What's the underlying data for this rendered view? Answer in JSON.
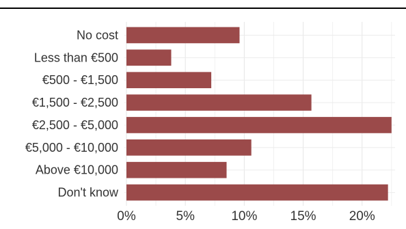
{
  "chart_data": {
    "type": "bar",
    "orientation": "horizontal",
    "title": "",
    "xlabel": "",
    "ylabel": "",
    "categories": [
      "No cost",
      "Less than €500",
      "€500 - €1,500",
      "€1,500  - €2,500",
      "€2,500 - €5,000",
      "€5,000 - €10,000",
      "Above €10,000",
      "Don't know"
    ],
    "values": [
      9.6,
      3.8,
      7.2,
      15.7,
      22.5,
      10.6,
      8.5,
      22.2
    ],
    "xlim": [
      0,
      22.8
    ],
    "x_ticks": [
      0,
      5,
      10,
      15,
      20
    ],
    "x_tick_labels": [
      "0%",
      "5%",
      "10%",
      "15%",
      "20%"
    ],
    "grid": true,
    "legend": "none",
    "bar_color": "#9b4a4a"
  }
}
